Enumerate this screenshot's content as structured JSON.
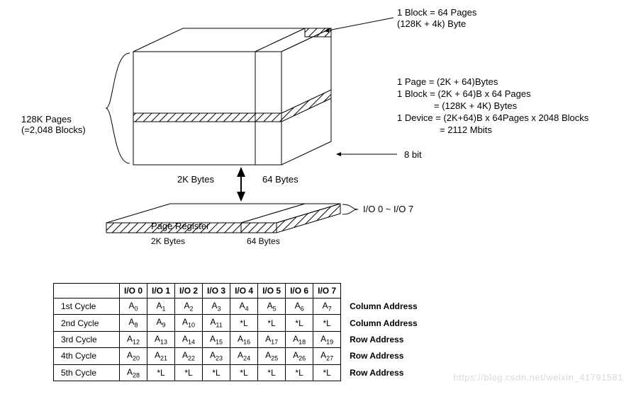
{
  "colors": {
    "stroke": "#000000",
    "bg": "#ffffff",
    "hatch": "#000000",
    "watermark": "#d9d9d9"
  },
  "diagram": {
    "block_label_line1": "1 Block = 64 Pages",
    "block_label_line2": "(128K + 4k) Byte",
    "calc_line1": "1 Page = (2K + 64)Bytes",
    "calc_line2": "1 Block = (2K + 64)B x 64 Pages",
    "calc_line3": "= (128K + 4K) Bytes",
    "calc_line4": "1 Device = (2K+64)B x 64Pages x 2048 Blocks",
    "calc_line5": "= 2112 Mbits",
    "eight_bit": "8 bit",
    "pages_label_line1": "128K Pages",
    "pages_label_line2": "(=2,048 Blocks)",
    "main_2k": "2K Bytes",
    "main_64": "64 Bytes",
    "page_register": "Page Register",
    "reg_2k": "2K Bytes",
    "reg_64": "64 Bytes",
    "io_range": "I/O 0 ~ I/O 7"
  },
  "table": {
    "headers": [
      "",
      "I/O 0",
      "I/O 1",
      "I/O 2",
      "I/O 3",
      "I/O 4",
      "I/O 5",
      "I/O 6",
      "I/O 7"
    ],
    "rows": [
      {
        "label": "1st Cycle",
        "cells": [
          "A0",
          "A1",
          "A2",
          "A3",
          "A4",
          "A5",
          "A6",
          "A7"
        ],
        "side": "Column Address"
      },
      {
        "label": "2nd Cycle",
        "cells": [
          "A8",
          "A9",
          "A10",
          "A11",
          "*L",
          "*L",
          "*L",
          "*L"
        ],
        "side": "Column Address"
      },
      {
        "label": "3rd Cycle",
        "cells": [
          "A12",
          "A13",
          "A14",
          "A15",
          "A16",
          "A17",
          "A18",
          "A19"
        ],
        "side": "Row Address"
      },
      {
        "label": "4th Cycle",
        "cells": [
          "A20",
          "A21",
          "A22",
          "A23",
          "A24",
          "A25",
          "A26",
          "A27"
        ],
        "side": "Row Address"
      },
      {
        "label": "5th Cycle",
        "cells": [
          "A28",
          "*L",
          "*L",
          "*L",
          "*L",
          "*L",
          "*L",
          "*L"
        ],
        "side": "Row Address"
      }
    ]
  },
  "watermark": "https://blog.csdn.net/weixin_41791581"
}
